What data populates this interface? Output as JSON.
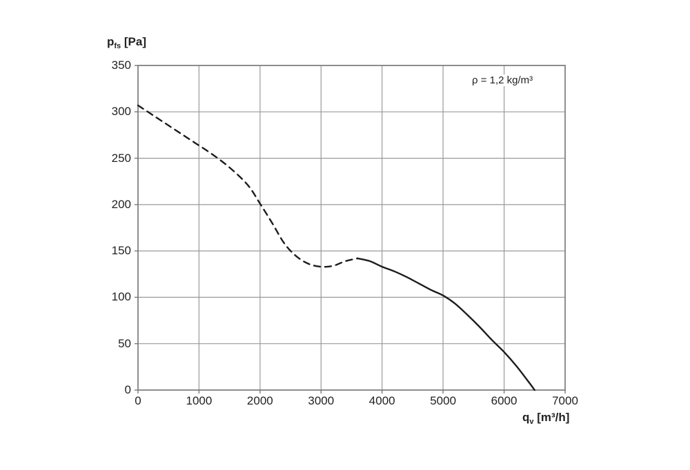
{
  "page": {
    "background": "#ffffff"
  },
  "chart_data": {
    "type": "line",
    "title": "",
    "ylabel_main": "p",
    "ylabel_sub": "fs",
    "ylabel_unit": " [Pa]",
    "xlabel_main": "q",
    "xlabel_sub": "v",
    "xlabel_unit": " [m³/h]",
    "annotation": "ρ = 1,2 kg/m³",
    "xlim": [
      0,
      7000
    ],
    "ylim": [
      0,
      350
    ],
    "x_ticks": [
      0,
      1000,
      2000,
      3000,
      4000,
      5000,
      6000,
      7000
    ],
    "y_ticks": [
      0,
      50,
      100,
      150,
      200,
      250,
      300,
      350
    ],
    "grid": true,
    "legend": "none",
    "colors": {
      "curve": "#1c1c1c",
      "grid": "#999999",
      "border": "#777777",
      "text": "#222222"
    },
    "series": [
      {
        "name": "fan-curve-unstable-region",
        "style": "dashed",
        "points": [
          [
            0,
            307
          ],
          [
            300,
            294
          ],
          [
            600,
            281
          ],
          [
            900,
            268
          ],
          [
            1200,
            255
          ],
          [
            1500,
            240
          ],
          [
            1800,
            221
          ],
          [
            2000,
            201
          ],
          [
            2200,
            180
          ],
          [
            2400,
            158
          ],
          [
            2600,
            144
          ],
          [
            2800,
            136
          ],
          [
            3000,
            133
          ],
          [
            3200,
            134
          ],
          [
            3400,
            139
          ],
          [
            3600,
            142
          ]
        ]
      },
      {
        "name": "fan-curve-stable-region",
        "style": "solid",
        "points": [
          [
            3600,
            142
          ],
          [
            3800,
            139
          ],
          [
            4000,
            133
          ],
          [
            4200,
            128
          ],
          [
            4400,
            122
          ],
          [
            4600,
            115
          ],
          [
            4800,
            108
          ],
          [
            5000,
            102
          ],
          [
            5200,
            93
          ],
          [
            5400,
            81
          ],
          [
            5600,
            68
          ],
          [
            5800,
            54
          ],
          [
            6000,
            41
          ],
          [
            6200,
            26
          ],
          [
            6400,
            9
          ],
          [
            6500,
            0
          ]
        ]
      }
    ]
  }
}
